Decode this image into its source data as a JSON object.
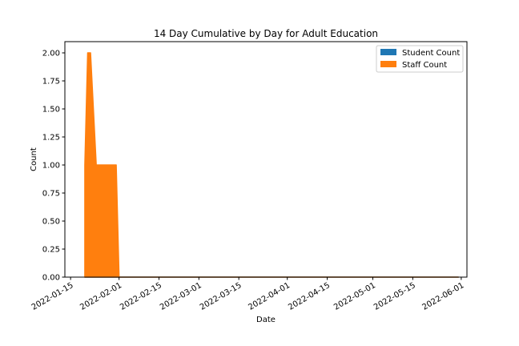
{
  "chart_data": {
    "type": "area",
    "stacked": true,
    "title": "14 Day Cumulative by Day for Adult Education",
    "xlabel": "Date",
    "ylabel": "Count",
    "ylim": [
      0,
      2.1
    ],
    "xlim": [
      "2022-01-13",
      "2022-06-03"
    ],
    "y_ticks": [
      "0.00",
      "0.25",
      "0.50",
      "0.75",
      "1.00",
      "1.25",
      "1.50",
      "1.75",
      "2.00"
    ],
    "y_tick_values": [
      0,
      0.25,
      0.5,
      0.75,
      1.0,
      1.25,
      1.5,
      1.75,
      2.0
    ],
    "x_ticks": [
      "2022-01-15",
      "2022-02-01",
      "2022-02-15",
      "2022-03-01",
      "2022-03-15",
      "2022-04-01",
      "2022-04-15",
      "2022-05-01",
      "2022-05-15",
      "2022-06-01"
    ],
    "grid": false,
    "legend": "top-right",
    "x": [
      "2022-01-20",
      "2022-01-21",
      "2022-01-22",
      "2022-01-23",
      "2022-01-24",
      "2022-01-25",
      "2022-01-26",
      "2022-01-27",
      "2022-01-28",
      "2022-01-29",
      "2022-01-30",
      "2022-01-31",
      "2022-02-01",
      "2022-02-15",
      "2022-03-01",
      "2022-03-15",
      "2022-04-01",
      "2022-04-15",
      "2022-05-01",
      "2022-05-15",
      "2022-05-31"
    ],
    "series": [
      {
        "name": "Student Count",
        "color": "#1f77b4",
        "values": [
          0,
          0,
          0,
          0,
          0,
          0,
          0,
          0,
          0,
          0,
          0,
          0,
          0,
          0,
          0,
          0,
          0,
          0,
          0,
          0,
          0
        ]
      },
      {
        "name": "Staff Count",
        "color": "#ff7f0e",
        "values": [
          1,
          2,
          2,
          1.5,
          1,
          1,
          1,
          1,
          1,
          1,
          1,
          1,
          0,
          0,
          0,
          0,
          0,
          0,
          0,
          0,
          0
        ]
      }
    ]
  }
}
